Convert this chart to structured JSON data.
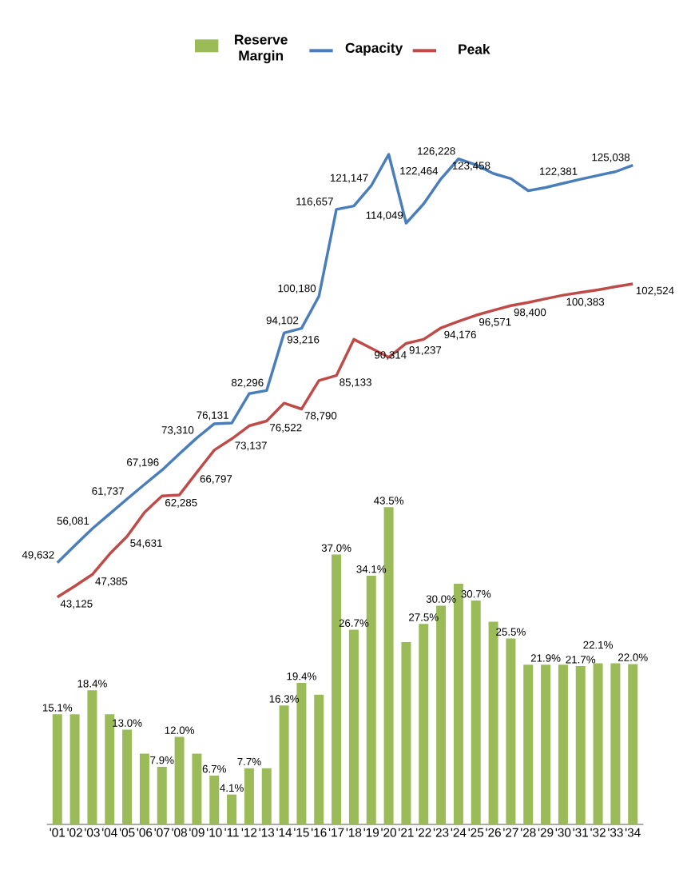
{
  "chart_data": {
    "type": "bar",
    "categories": [
      "'01",
      "'02",
      "'03",
      "'04",
      "'05",
      "'06",
      "'07",
      "'08",
      "'09",
      "'10",
      "'11",
      "'12",
      "'13",
      "'14",
      "'15",
      "'16",
      "'17",
      "'18",
      "'19",
      "'20",
      "'21",
      "'22",
      "'23",
      "'24",
      "'25",
      "'26",
      "'27",
      "'28",
      "'29",
      "'30",
      "'31",
      "'32",
      "'33",
      "'34"
    ],
    "tick_labels": "x",
    "legend": "top",
    "series": [
      {
        "name": "Reserve Margin",
        "color": "#9bbb59",
        "values": [
          15.1,
          15.1,
          18.4,
          15.1,
          13.0,
          9.7,
          7.9,
          12.0,
          9.7,
          6.7,
          4.1,
          7.7,
          7.7,
          16.3,
          19.4,
          17.8,
          37.0,
          26.7,
          34.1,
          43.5,
          25.0,
          27.5,
          30.0,
          33.0,
          30.7,
          27.8,
          25.5,
          21.9,
          21.9,
          21.9,
          21.7,
          22.1,
          22.1,
          22.0
        ],
        "value_labels": [
          "15.1%",
          null,
          "18.4%",
          null,
          "13.0%",
          null,
          "7.9%",
          "12.0%",
          null,
          "6.7%",
          "4.1%",
          "7.7%",
          null,
          "16.3%",
          "19.4%",
          null,
          "37.0%",
          "26.7%",
          "34.1%",
          "43.5%",
          null,
          "27.5%",
          "30.0%",
          null,
          "30.7%",
          null,
          "25.5%",
          null,
          "21.9%",
          null,
          "21.7%",
          "22.1%",
          null,
          "22.0%"
        ]
      },
      {
        "name": "Capacity",
        "type": "line",
        "axis": "y2",
        "color": "#4a7ebb",
        "values": [
          49632,
          52900,
          56081,
          58900,
          61737,
          64500,
          67196,
          70300,
          73310,
          76000,
          76131,
          81700,
          82296,
          93216,
          94102,
          100180,
          116657,
          117300,
          121147,
          127100,
          114049,
          117700,
          122464,
          126228,
          125100,
          123458,
          122500,
          120200,
          120800,
          121600,
          122381,
          123100,
          123800,
          125038
        ],
        "value_labels": [
          "49,632",
          null,
          "56,081",
          null,
          "61,737",
          null,
          "67,196",
          null,
          "73,310",
          null,
          "76,131",
          null,
          "82,296",
          "93,216",
          "94,102",
          "100,180",
          "116,657",
          null,
          "121,147",
          null,
          "114,049",
          null,
          "122,464",
          "126,228",
          null,
          "123,458",
          null,
          null,
          null,
          null,
          "122,381",
          null,
          null,
          "125,038"
        ]
      },
      {
        "name": "Peak",
        "type": "line",
        "axis": "y2",
        "color": "#be4b48",
        "values": [
          43125,
          45200,
          47385,
          51300,
          54631,
          59200,
          62285,
          62500,
          66797,
          71000,
          73137,
          75600,
          76522,
          79900,
          78790,
          84200,
          85133,
          92000,
          90314,
          88600,
          91237,
          92000,
          94176,
          95400,
          96571,
          97500,
          98400,
          99000,
          99700,
          100383,
          100900,
          101400,
          102000,
          102524
        ],
        "value_labels": [
          "43,125",
          null,
          "47,385",
          null,
          "54,631",
          null,
          "62,285",
          null,
          "66,797",
          null,
          "73,137",
          null,
          "76,522",
          null,
          "78,790",
          null,
          "85,133",
          null,
          "90,314",
          null,
          "91,237",
          null,
          "94,176",
          null,
          "96,571",
          null,
          "98,400",
          null,
          null,
          "100,383",
          null,
          null,
          null,
          "102,524"
        ]
      }
    ]
  }
}
